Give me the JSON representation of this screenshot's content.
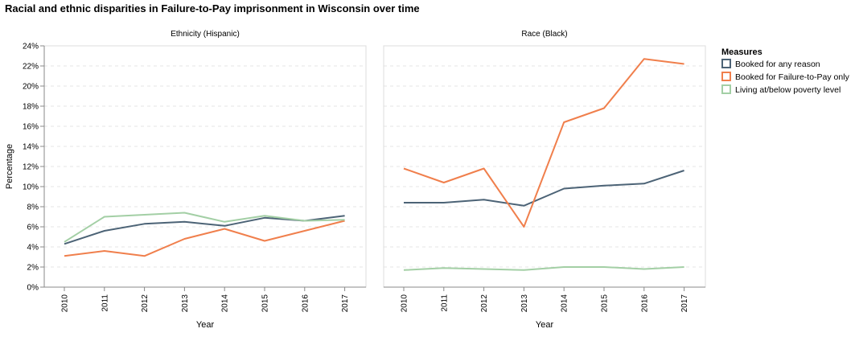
{
  "page": {
    "title": "Racial and ethnic disparities in Failure-to-Pay imprisonment in Wisconsin over time"
  },
  "colors": {
    "booked_any": "#4c6376",
    "booked_ftp": "#f07f4c",
    "poverty": "#a3cfa5",
    "axis": "#888888",
    "grid": "#e6e6e6",
    "text": "#000000"
  },
  "chart_data": {
    "type": "line",
    "title": "Racial and ethnic disparities in Failure-to-Pay imprisonment in Wisconsin over time",
    "xlabel": "Year",
    "ylabel": "Percentage",
    "ylim": [
      0,
      24
    ],
    "y_ticks": [
      "0%",
      "2%",
      "4%",
      "6%",
      "8%",
      "10%",
      "12%",
      "14%",
      "16%",
      "18%",
      "20%",
      "22%",
      "24%"
    ],
    "categories": [
      "2010",
      "2011",
      "2012",
      "2013",
      "2014",
      "2015",
      "2016",
      "2017"
    ],
    "grid": "horizontal dashed",
    "legend": {
      "title": "Measures",
      "position": "right",
      "entries": [
        "Booked for any reason",
        "Booked for Failure-to-Pay only",
        "Living at/below poverty level"
      ]
    },
    "panels": [
      {
        "title": "Ethnicity (Hispanic)",
        "series": [
          {
            "name": "Booked for any reason",
            "values": [
              4.3,
              5.6,
              6.3,
              6.5,
              6.1,
              6.9,
              6.6,
              7.1
            ]
          },
          {
            "name": "Booked for Failure-to-Pay only",
            "values": [
              3.1,
              3.6,
              3.1,
              4.8,
              5.8,
              4.6,
              5.6,
              6.6
            ]
          },
          {
            "name": "Living at/below poverty level",
            "values": [
              4.5,
              7.0,
              7.2,
              7.4,
              6.5,
              7.1,
              6.6,
              6.7
            ]
          }
        ]
      },
      {
        "title": "Race (Black)",
        "series": [
          {
            "name": "Booked for any reason",
            "values": [
              8.4,
              8.4,
              8.7,
              8.1,
              9.8,
              10.1,
              10.3,
              11.6
            ]
          },
          {
            "name": "Booked for Failure-to-Pay only",
            "values": [
              11.8,
              10.4,
              11.8,
              6.0,
              16.4,
              17.8,
              22.7,
              22.2
            ]
          },
          {
            "name": "Living at/below poverty level",
            "values": [
              1.7,
              1.9,
              1.8,
              1.7,
              2.0,
              2.0,
              1.8,
              2.0
            ]
          }
        ]
      }
    ]
  }
}
